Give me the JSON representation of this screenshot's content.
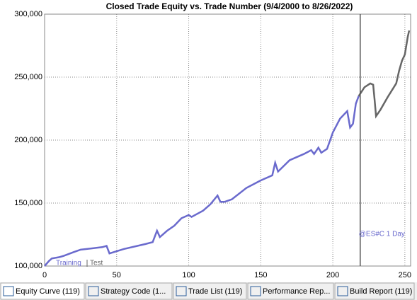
{
  "chart_data": {
    "type": "line",
    "title": "Closed Trade Equity vs. Trade Number (9/4/2000 to 8/26/2022)",
    "series": [
      {
        "name": "Training",
        "color": "#6a6acd",
        "x": [
          0,
          3,
          5,
          10,
          13,
          20,
          25,
          40,
          43,
          45,
          55,
          70,
          75,
          78,
          80,
          85,
          90,
          95,
          100,
          102,
          110,
          115,
          120,
          122,
          125,
          130,
          140,
          150,
          158,
          160,
          162,
          170,
          180,
          185,
          187,
          190,
          192,
          196,
          200,
          205,
          210,
          212,
          214,
          216,
          218
        ],
        "values": [
          100000,
          104000,
          106000,
          107000,
          108000,
          111000,
          113000,
          115000,
          116000,
          110000,
          113500,
          117500,
          119000,
          128000,
          123000,
          128000,
          132000,
          138000,
          140500,
          139000,
          144000,
          149000,
          156000,
          151000,
          151000,
          153000,
          162000,
          168000,
          172000,
          182000,
          175000,
          184000,
          189000,
          192000,
          189000,
          194000,
          190000,
          193000,
          206000,
          217000,
          223000,
          210000,
          213000,
          229000,
          235000
        ]
      },
      {
        "name": "Test",
        "color": "#666666",
        "x": [
          218,
          222,
          226,
          228,
          229,
          230,
          233,
          238,
          244,
          246,
          248,
          250,
          252,
          253
        ],
        "values": [
          235000,
          242000,
          245000,
          244000,
          232000,
          219000,
          224000,
          234000,
          245000,
          255000,
          263000,
          268000,
          282000,
          287000
        ]
      }
    ],
    "xlim": [
      0,
      254
    ],
    "xticks": [
      0,
      50,
      100,
      150,
      200,
      250
    ],
    "ylim": [
      100000,
      300000
    ],
    "yticks": [
      {
        "value": 100000,
        "label": "100,000"
      },
      {
        "value": 150000,
        "label": "150,000"
      },
      {
        "value": 200000,
        "label": "200,000"
      },
      {
        "value": 250000,
        "label": "250,000"
      },
      {
        "value": 300000,
        "label": "300,000"
      }
    ],
    "grid": true,
    "divider_x": 219,
    "annotation": "@ES#C 1 Day"
  },
  "tabs": [
    "Equity Curve (119)",
    "Strategy Code (1...",
    "Trade List (119)",
    "Performance Rep...",
    "Build Report (119)"
  ]
}
